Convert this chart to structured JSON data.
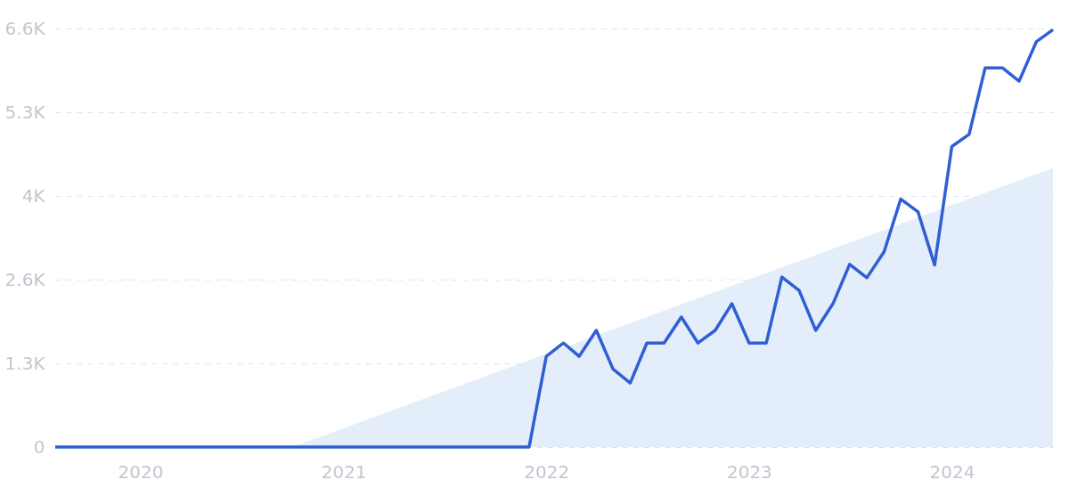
{
  "chart_data": {
    "type": "line",
    "x": [
      "2019-08",
      "2019-09",
      "2019-10",
      "2019-11",
      "2019-12",
      "2020-01",
      "2020-02",
      "2020-03",
      "2020-04",
      "2020-05",
      "2020-06",
      "2020-07",
      "2020-08",
      "2020-09",
      "2020-10",
      "2020-11",
      "2020-12",
      "2021-01",
      "2021-02",
      "2021-03",
      "2021-04",
      "2021-05",
      "2021-06",
      "2021-07",
      "2021-08",
      "2021-09",
      "2021-10",
      "2021-11",
      "2021-12",
      "2022-01",
      "2022-02",
      "2022-03",
      "2022-04",
      "2022-05",
      "2022-06",
      "2022-07",
      "2022-08",
      "2022-09",
      "2022-10",
      "2022-11",
      "2022-12",
      "2023-01",
      "2023-02",
      "2023-03",
      "2023-04",
      "2023-05",
      "2023-06",
      "2023-07",
      "2023-08",
      "2023-09",
      "2023-10",
      "2023-11",
      "2023-12",
      "2024-01",
      "2024-02",
      "2024-03",
      "2024-04",
      "2024-05",
      "2024-06",
      "2024-07"
    ],
    "series": [
      {
        "type": "area",
        "color": "#e4eefb",
        "x": [
          "2020-10",
          "2024-07"
        ],
        "values": [
          0,
          4400
        ]
      },
      {
        "color": "#2f5fd4",
        "values": [
          0,
          0,
          0,
          0,
          0,
          0,
          0,
          0,
          0,
          0,
          0,
          0,
          0,
          0,
          0,
          0,
          0,
          0,
          0,
          0,
          0,
          0,
          0,
          0,
          0,
          0,
          0,
          0,
          0,
          1430,
          1640,
          1430,
          1840,
          1230,
          1010,
          1640,
          1640,
          2050,
          1640,
          1840,
          2260,
          1640,
          1640,
          2680,
          2470,
          1840,
          2260,
          2880,
          2670,
          3080,
          3910,
          3710,
          2870,
          4740,
          4930,
          5980,
          5980,
          5770,
          6390,
          6580
        ]
      }
    ],
    "xlim": [
      "2019-08",
      "2024-07"
    ],
    "xticks": [
      "2020",
      "2021",
      "2022",
      "2023",
      "2024"
    ],
    "ylim": [
      0,
      6600
    ],
    "yticks": [
      0,
      {
        "value": 1320,
        "label": "1.3K"
      },
      {
        "value": 2640,
        "label": "2.6K"
      },
      {
        "value": 3960,
        "label": "4K"
      },
      {
        "value": 5280,
        "label": "5.3K"
      },
      {
        "value": 6600,
        "label": "6.6K"
      }
    ],
    "grid": "y",
    "line_style": "solid",
    "marker": "none"
  }
}
